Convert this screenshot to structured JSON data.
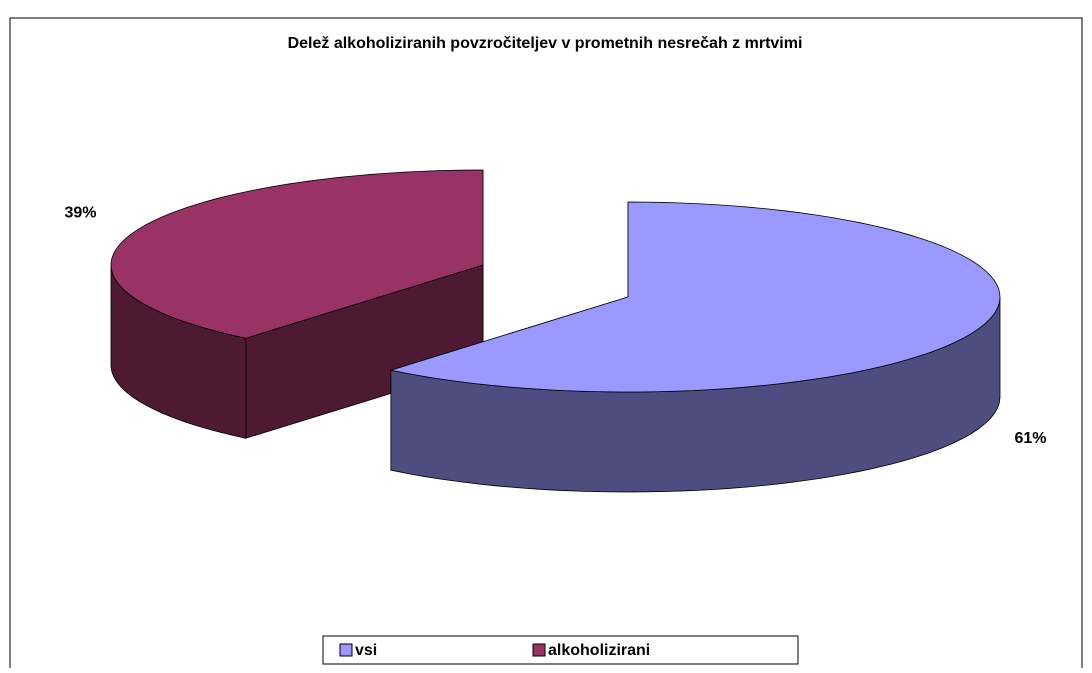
{
  "chart_data": {
    "type": "pie",
    "title": "Delež alkoholiziranih povzročiteljev v prometnih nesrečah z mrtvimi",
    "categories": [
      "vsi",
      "alkoholizirani"
    ],
    "values": [
      61,
      39
    ],
    "value_labels": [
      "61%",
      "39%"
    ],
    "colors": [
      "#9999ff",
      "#993366"
    ],
    "side_colors": [
      "#4d4d80",
      "#4d1933"
    ],
    "legend": "bottom"
  }
}
